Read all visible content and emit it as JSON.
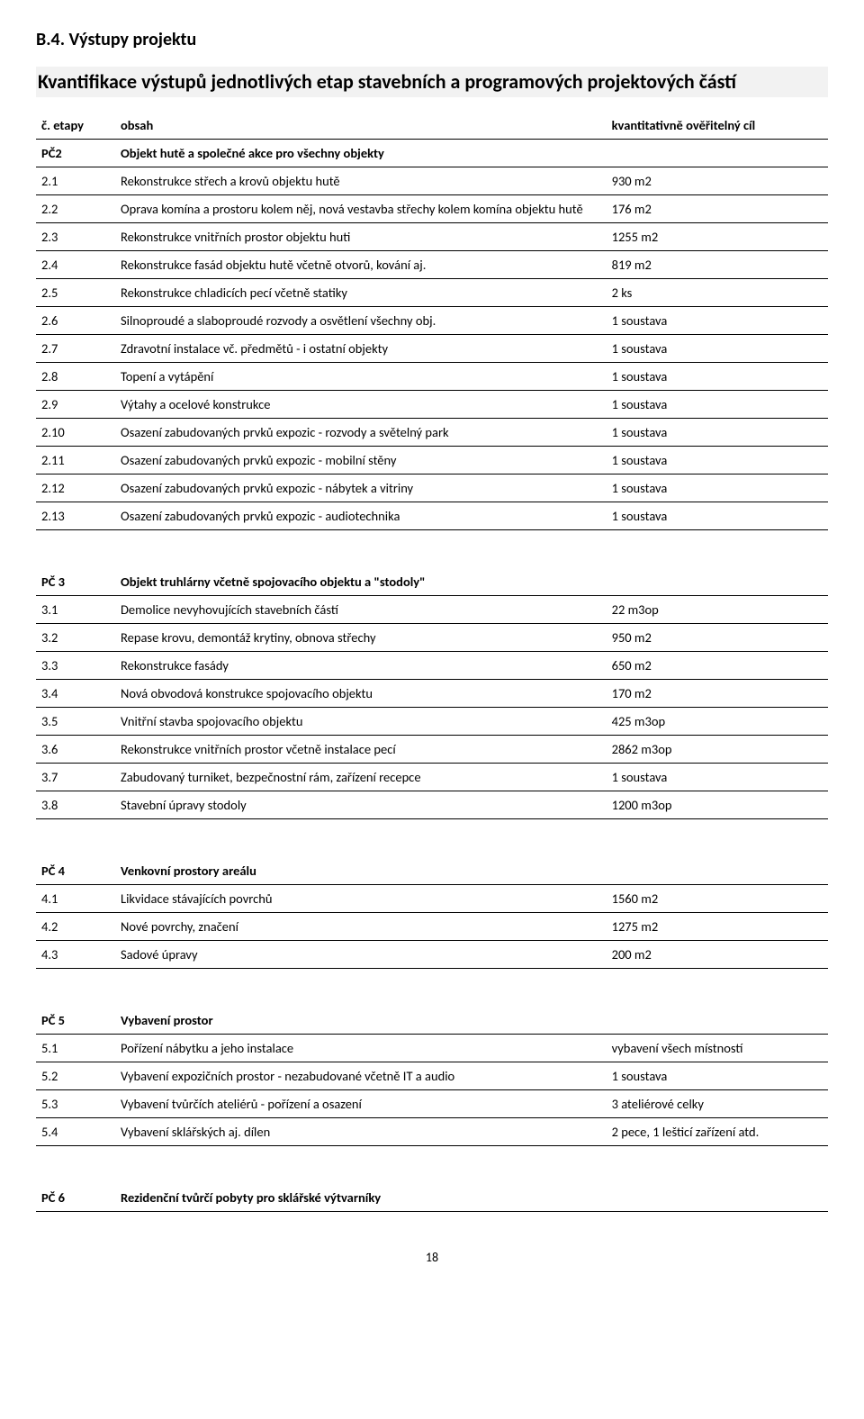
{
  "section_label": "B.4. Výstupy projektu",
  "subtitle": "Kvantifikace výstupů jednotlivých etap stavebních a programových projektových částí",
  "header": {
    "col1": "č. etapy",
    "col2": "obsah",
    "col3": "kvantitativně ověřitelný cíl"
  },
  "groups": [
    {
      "id": "PČ2",
      "title": "Objekt hutě a společné akce pro všechny objekty",
      "rows": [
        {
          "n": "2.1",
          "d": "Rekonstrukce střech a krovů objektu hutě",
          "v": "930 m2"
        },
        {
          "n": "2.2",
          "d": "Oprava komína a prostoru kolem něj, nová vestavba střechy kolem komína objektu hutě",
          "v": "176 m2"
        },
        {
          "n": "2.3",
          "d": "Rekonstrukce vnitřních prostor objektu huti",
          "v": "1255 m2"
        },
        {
          "n": "2.4",
          "d": "Rekonstrukce fasád objektu hutě včetně otvorů, kování aj.",
          "v": "819 m2"
        },
        {
          "n": "2.5",
          "d": "Rekonstrukce chladicích pecí včetně statiky",
          "v": "2 ks"
        },
        {
          "n": "2.6",
          "d": "Silnoproudé a slaboproudé rozvody a osvětlení všechny obj.",
          "v": "1 soustava"
        },
        {
          "n": "2.7",
          "d": "Zdravotní instalace vč. předmětů - i ostatní objekty",
          "v": "1 soustava"
        },
        {
          "n": "2.8",
          "d": "Topení a vytápění",
          "v": "1 soustava"
        },
        {
          "n": "2.9",
          "d": "Výtahy a ocelové konstrukce",
          "v": "1 soustava"
        },
        {
          "n": "2.10",
          "d": "Osazení zabudovaných prvků expozic - rozvody a světelný park",
          "v": "1 soustava"
        },
        {
          "n": "2.11",
          "d": "Osazení zabudovaných prvků expozic - mobilní stěny",
          "v": "1 soustava"
        },
        {
          "n": "2.12",
          "d": "Osazení zabudovaných prvků expozic - nábytek a vitriny",
          "v": "1 soustava"
        },
        {
          "n": "2.13",
          "d": "Osazení zabudovaných prvků expozic - audiotechnika",
          "v": "1 soustava"
        }
      ]
    },
    {
      "id": "PČ 3",
      "title": "Objekt truhlárny včetně spojovacího objektu a \"stodoly\"",
      "rows": [
        {
          "n": "3.1",
          "d": "Demolice nevyhovujících stavebních částí",
          "v": "22 m3op"
        },
        {
          "n": "3.2",
          "d": "Repase krovu, demontáž krytiny, obnova střechy",
          "v": "950 m2"
        },
        {
          "n": "3.3",
          "d": "Rekonstrukce fasády",
          "v": "650 m2"
        },
        {
          "n": "3.4",
          "d": "Nová obvodová konstrukce spojovacího objektu",
          "v": "170 m2"
        },
        {
          "n": "3.5",
          "d": "Vnitřní stavba spojovacího objektu",
          "v": "425 m3op"
        },
        {
          "n": "3.6",
          "d": "Rekonstrukce vnitřních prostor včetně instalace pecí",
          "v": "2862 m3op"
        },
        {
          "n": "3.7",
          "d": "Zabudovaný turniket, bezpečnostní rám, zařízení recepce",
          "v": "1 soustava"
        },
        {
          "n": "3.8",
          "d": "Stavební úpravy stodoly",
          "v": "1200 m3op"
        }
      ]
    },
    {
      "id": "PČ 4",
      "title": "Venkovní prostory areálu",
      "rows": [
        {
          "n": "4.1",
          "d": "Likvidace stávajících povrchů",
          "v": "1560 m2"
        },
        {
          "n": "4.2",
          "d": "Nové povrchy, značení",
          "v": "1275 m2"
        },
        {
          "n": "4.3",
          "d": "Sadové úpravy",
          "v": "200 m2"
        }
      ]
    },
    {
      "id": "PČ 5",
      "title": "Vybavení prostor",
      "rows": [
        {
          "n": "5.1",
          "d": "Pořízení nábytku a jeho instalace",
          "v": "vybavení všech místností"
        },
        {
          "n": "5.2",
          "d": "Vybavení expozičních prostor - nezabudované včetně IT a audio",
          "v": "1 soustava"
        },
        {
          "n": "5.3",
          "d": "Vybavení tvůrčích ateliérů - pořízení a osazení",
          "v": "3 ateliérové celky"
        },
        {
          "n": "5.4",
          "d": "Vybavení sklářských aj. dílen",
          "v": "2 pece, 1 lešticí zařízení atd."
        }
      ]
    },
    {
      "id": "PČ 6",
      "title": "Rezidenční tvůrčí pobyty pro sklářské výtvarníky",
      "rows": []
    }
  ],
  "page_number": "18"
}
